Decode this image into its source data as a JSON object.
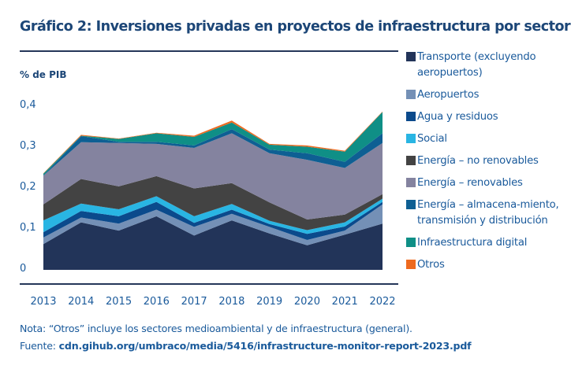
{
  "header": {
    "title": "Gráfico 2: Inversiones privadas en proyectos de infraestructura por sector"
  },
  "chart_data": {
    "type": "area",
    "stacked": true,
    "title": "Gráfico 2: Inversiones privadas en proyectos de infraestructura por sector",
    "xlabel": "",
    "ylabel": "% de PIB",
    "ylim": [
      0,
      0.4
    ],
    "yticks": [
      0,
      0.1,
      0.2,
      0.3,
      0.4
    ],
    "ytick_labels": [
      "0",
      "0,1",
      "0,2",
      "0,3",
      "0,4"
    ],
    "categories": [
      "2013",
      "2014",
      "2015",
      "2016",
      "2017",
      "2018",
      "2019",
      "2020",
      "2021",
      "2022"
    ],
    "legend_position": "right",
    "grid": false,
    "series": [
      {
        "name": "Transporte (excluyendo aeropuertos)",
        "color": "#223459",
        "values": [
          0.063,
          0.116,
          0.096,
          0.131,
          0.084,
          0.121,
          0.089,
          0.06,
          0.086,
          0.113
        ]
      },
      {
        "name": "Aeropuertos",
        "color": "#7490b6",
        "values": [
          0.016,
          0.012,
          0.017,
          0.016,
          0.021,
          0.016,
          0.016,
          0.013,
          0.01,
          0.047
        ]
      },
      {
        "name": "Agua y residuos",
        "color": "#0b4a8c",
        "values": [
          0.013,
          0.016,
          0.018,
          0.019,
          0.01,
          0.01,
          0.007,
          0.015,
          0.01,
          0.006
        ]
      },
      {
        "name": "Social",
        "color": "#29b5e3",
        "values": [
          0.029,
          0.018,
          0.017,
          0.014,
          0.016,
          0.014,
          0.008,
          0.009,
          0.01,
          0.008
        ]
      },
      {
        "name": "Energía – no renovables",
        "color": "#434343",
        "values": [
          0.039,
          0.06,
          0.056,
          0.049,
          0.068,
          0.051,
          0.045,
          0.026,
          0.019,
          0.011
        ]
      },
      {
        "name": "Energía – renovables",
        "color": "#84839f",
        "values": [
          0.07,
          0.09,
          0.106,
          0.079,
          0.099,
          0.122,
          0.12,
          0.146,
          0.114,
          0.125
        ]
      },
      {
        "name": "Energía – almacena-miento, transmisión y distribución",
        "color": "#0e5f93",
        "values": [
          0.001,
          0.015,
          0.003,
          0.005,
          0.006,
          0.01,
          0.009,
          0.016,
          0.015,
          0.024
        ]
      },
      {
        "name": "Infraestructura digital",
        "color": "#0f8f86",
        "values": [
          0.004,
          0.001,
          0.007,
          0.021,
          0.021,
          0.016,
          0.012,
          0.016,
          0.025,
          0.052
        ]
      },
      {
        "name": "Otros",
        "color": "#ee6a1f",
        "values": [
          0.001,
          0.002,
          0.001,
          0.001,
          0.003,
          0.005,
          0.002,
          0.003,
          0.002,
          0.001
        ]
      }
    ]
  },
  "legend": {
    "items": [
      {
        "label": "Transporte (excluyendo aeropuertos)",
        "color": "#223459"
      },
      {
        "label": "Aeropuertos",
        "color": "#7490b6"
      },
      {
        "label": "Agua y residuos",
        "color": "#0b4a8c"
      },
      {
        "label": "Social",
        "color": "#29b5e3"
      },
      {
        "label": "Energía – no renovables",
        "color": "#434343"
      },
      {
        "label": "Energía – renovables",
        "color": "#84839f"
      },
      {
        "label": "Energía – almacena-miento, transmisión y distribución",
        "color": "#0e5f93"
      },
      {
        "label": "Infraestructura digital",
        "color": "#0f8f86"
      },
      {
        "label": "Otros",
        "color": "#ee6a1f"
      }
    ]
  },
  "footer": {
    "note": "Nota: “Otros” incluye los sectores medioambiental y de infraestructura (general).",
    "source_label": "Fuente: ",
    "source_url_text": "cdn.gihub.org/umbraco/media/5416/infrastructure-monitor-report-2023.pdf"
  }
}
